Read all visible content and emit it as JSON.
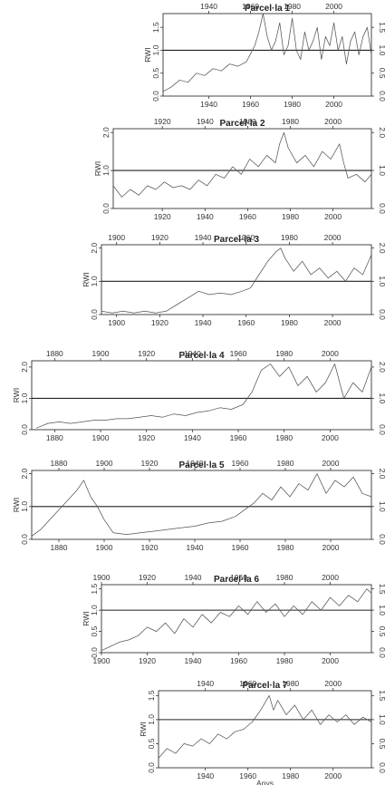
{
  "chart_data": [
    {
      "type": "line",
      "title": "Parcel·la 1",
      "ylabel": "RWI",
      "xlim": [
        1918,
        2018
      ],
      "ylim": [
        0,
        1.8
      ],
      "xticks": [
        1940,
        1960,
        1980,
        2000
      ],
      "yticks": [
        0.0,
        0.5,
        1.0,
        1.5
      ],
      "reference_line": 1.0,
      "x": [
        1918,
        1922,
        1926,
        1930,
        1934,
        1938,
        1942,
        1946,
        1950,
        1954,
        1958,
        1962,
        1964,
        1966,
        1968,
        1970,
        1972,
        1974,
        1976,
        1978,
        1980,
        1982,
        1984,
        1986,
        1988,
        1990,
        1992,
        1994,
        1996,
        1998,
        2000,
        2002,
        2004,
        2006,
        2008,
        2010,
        2012,
        2014,
        2016,
        2018
      ],
      "y": [
        0.1,
        0.2,
        0.35,
        0.3,
        0.5,
        0.45,
        0.6,
        0.55,
        0.7,
        0.65,
        0.75,
        1.1,
        1.4,
        1.8,
        1.3,
        1.0,
        1.2,
        1.6,
        0.9,
        1.1,
        1.7,
        1.0,
        0.8,
        1.4,
        1.0,
        1.2,
        1.5,
        0.8,
        1.3,
        1.1,
        1.6,
        1.0,
        1.3,
        0.7,
        1.2,
        1.4,
        0.9,
        1.3,
        1.5,
        0.9
      ]
    },
    {
      "type": "line",
      "title": "Parcel·la 2",
      "ylabel": "RWI",
      "xlim": [
        1897,
        2018
      ],
      "ylim": [
        0,
        2.1
      ],
      "xticks": [
        1920,
        1940,
        1960,
        1980,
        2000
      ],
      "yticks": [
        0.0,
        1.0,
        2.0
      ],
      "reference_line": 1.0,
      "x": [
        1897,
        1901,
        1905,
        1909,
        1913,
        1917,
        1921,
        1925,
        1929,
        1933,
        1937,
        1941,
        1945,
        1949,
        1953,
        1957,
        1961,
        1965,
        1969,
        1973,
        1975,
        1977,
        1979,
        1983,
        1987,
        1991,
        1995,
        1999,
        2003,
        2005,
        2007,
        2011,
        2015,
        2018
      ],
      "y": [
        0.6,
        0.3,
        0.5,
        0.35,
        0.6,
        0.5,
        0.7,
        0.55,
        0.6,
        0.5,
        0.75,
        0.6,
        0.9,
        0.8,
        1.1,
        0.9,
        1.3,
        1.1,
        1.4,
        1.2,
        1.7,
        2.0,
        1.6,
        1.2,
        1.4,
        1.1,
        1.5,
        1.3,
        1.7,
        1.2,
        0.8,
        0.9,
        0.7,
        0.9
      ]
    },
    {
      "type": "line",
      "title": "Parcel·la 3",
      "ylabel": "RWI",
      "xlim": [
        1893,
        2018
      ],
      "ylim": [
        0,
        2.1
      ],
      "xticks": [
        1900,
        1920,
        1940,
        1960,
        1980,
        2000
      ],
      "yticks": [
        0.0,
        1.0,
        2.0
      ],
      "reference_line": 1.0,
      "x": [
        1893,
        1898,
        1903,
        1908,
        1913,
        1918,
        1923,
        1928,
        1933,
        1938,
        1943,
        1948,
        1953,
        1958,
        1962,
        1966,
        1970,
        1974,
        1976,
        1978,
        1982,
        1986,
        1990,
        1994,
        1998,
        2002,
        2006,
        2010,
        2014,
        2018
      ],
      "y": [
        0.1,
        0.05,
        0.1,
        0.05,
        0.1,
        0.05,
        0.1,
        0.3,
        0.5,
        0.7,
        0.6,
        0.65,
        0.6,
        0.7,
        0.8,
        1.2,
        1.6,
        1.9,
        2.0,
        1.7,
        1.3,
        1.6,
        1.2,
        1.4,
        1.1,
        1.3,
        1.0,
        1.4,
        1.2,
        1.8
      ]
    },
    {
      "type": "line",
      "title": "Parcel·la 4",
      "ylabel": "RWI",
      "xlim": [
        1870,
        2018
      ],
      "ylim": [
        0,
        2.2
      ],
      "xticks": [
        1880,
        1900,
        1920,
        1940,
        1960,
        1980,
        2000
      ],
      "yticks": [
        0.0,
        1.0,
        2.0
      ],
      "reference_line": 1.0,
      "x": [
        1872,
        1877,
        1882,
        1887,
        1892,
        1897,
        1902,
        1907,
        1912,
        1917,
        1922,
        1927,
        1932,
        1937,
        1942,
        1947,
        1952,
        1957,
        1962,
        1966,
        1970,
        1974,
        1978,
        1982,
        1986,
        1990,
        1994,
        1998,
        2002,
        2006,
        2010,
        2014,
        2018
      ],
      "y": [
        0.05,
        0.2,
        0.25,
        0.2,
        0.25,
        0.3,
        0.3,
        0.35,
        0.35,
        0.4,
        0.45,
        0.4,
        0.5,
        0.45,
        0.55,
        0.6,
        0.7,
        0.65,
        0.8,
        1.2,
        1.9,
        2.1,
        1.7,
        2.0,
        1.4,
        1.7,
        1.2,
        1.5,
        2.1,
        1.0,
        1.5,
        1.2,
        2.0
      ]
    },
    {
      "type": "line",
      "title": "Parcel·la 5",
      "ylabel": "RWI",
      "xlim": [
        1868,
        2018
      ],
      "ylim": [
        0,
        2.1
      ],
      "xticks": [
        1880,
        1900,
        1920,
        1940,
        1960,
        1980,
        2000
      ],
      "yticks": [
        0.0,
        1.0,
        2.0
      ],
      "reference_line": 1.0,
      "x": [
        1868,
        1872,
        1876,
        1880,
        1884,
        1888,
        1891,
        1894,
        1897,
        1900,
        1904,
        1910,
        1916,
        1922,
        1928,
        1934,
        1940,
        1946,
        1952,
        1958,
        1962,
        1966,
        1970,
        1974,
        1978,
        1982,
        1986,
        1990,
        1994,
        1998,
        2002,
        2006,
        2010,
        2014,
        2018
      ],
      "y": [
        0.1,
        0.3,
        0.6,
        0.9,
        1.2,
        1.5,
        1.8,
        1.3,
        1.0,
        0.6,
        0.2,
        0.15,
        0.2,
        0.25,
        0.3,
        0.35,
        0.4,
        0.5,
        0.55,
        0.7,
        0.9,
        1.1,
        1.4,
        1.2,
        1.6,
        1.3,
        1.7,
        1.5,
        2.0,
        1.4,
        1.8,
        1.6,
        1.9,
        1.4,
        1.3
      ]
    },
    {
      "type": "line",
      "title": "Parcel·la 6",
      "ylabel": "RWI",
      "xlim": [
        1900,
        2018
      ],
      "ylim": [
        0,
        1.6
      ],
      "xticks": [
        1900,
        1920,
        1940,
        1960,
        1980,
        2000
      ],
      "yticks": [
        0.0,
        0.5,
        1.0,
        1.5
      ],
      "reference_line": 1.0,
      "x": [
        1900,
        1904,
        1908,
        1912,
        1916,
        1920,
        1924,
        1928,
        1932,
        1936,
        1940,
        1944,
        1948,
        1952,
        1956,
        1960,
        1964,
        1968,
        1972,
        1976,
        1980,
        1984,
        1988,
        1992,
        1996,
        2000,
        2004,
        2008,
        2012,
        2016,
        2018
      ],
      "y": [
        0.05,
        0.15,
        0.25,
        0.3,
        0.4,
        0.6,
        0.5,
        0.7,
        0.45,
        0.8,
        0.6,
        0.9,
        0.7,
        0.95,
        0.85,
        1.1,
        0.9,
        1.2,
        0.95,
        1.15,
        0.85,
        1.1,
        0.9,
        1.2,
        1.0,
        1.3,
        1.1,
        1.35,
        1.2,
        1.5,
        1.4
      ]
    },
    {
      "type": "line",
      "title": "Parcel·la 7",
      "ylabel": "RWI",
      "xlabel": "Anys",
      "xlim": [
        1918,
        2018
      ],
      "ylim": [
        0,
        1.6
      ],
      "xticks": [
        1940,
        1960,
        1980,
        2000
      ],
      "yticks": [
        0.0,
        0.5,
        1.0,
        1.5
      ],
      "reference_line": 1.0,
      "x": [
        1918,
        1922,
        1926,
        1930,
        1934,
        1938,
        1942,
        1946,
        1950,
        1954,
        1958,
        1962,
        1966,
        1970,
        1972,
        1974,
        1978,
        1982,
        1986,
        1990,
        1994,
        1998,
        2002,
        2006,
        2010,
        2014,
        2018
      ],
      "y": [
        0.2,
        0.4,
        0.3,
        0.5,
        0.45,
        0.6,
        0.5,
        0.7,
        0.6,
        0.75,
        0.8,
        0.95,
        1.2,
        1.5,
        1.2,
        1.4,
        1.1,
        1.3,
        1.0,
        1.2,
        0.9,
        1.1,
        0.95,
        1.1,
        0.9,
        1.05,
        0.95
      ]
    }
  ]
}
